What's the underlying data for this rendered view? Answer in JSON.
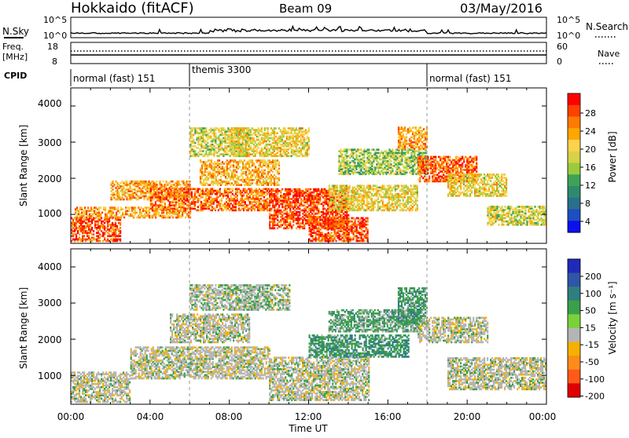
{
  "header": {
    "station": "Hokkaido (fitACF)",
    "beam": "Beam 09",
    "date": "03/May/2016"
  },
  "noise_panel": {
    "left_label": "N.Sky",
    "right_label": "N.Search",
    "left_ticks": [
      "10^5",
      "10^0"
    ],
    "right_ticks": [
      "10^5",
      "10^0"
    ]
  },
  "freq_panel": {
    "left_label_1": "Freq.",
    "left_label_2": "[MHz]",
    "left_ticks": [
      "18",
      "8"
    ],
    "right_label": "Nave",
    "right_ticks": [
      "60",
      "0"
    ]
  },
  "cpid": {
    "label": "CPID",
    "segments": [
      {
        "name": "normal (fast) 151",
        "start_hour": 0,
        "end_hour": 6
      },
      {
        "name": "themis 3300",
        "start_hour": 6,
        "end_hour": 18
      },
      {
        "name": "normal (fast) 151",
        "start_hour": 18,
        "end_hour": 24
      }
    ]
  },
  "power_panel": {
    "ylabel": "Slant Range [km]",
    "yticks": [
      "4000",
      "3000",
      "2000",
      "1000"
    ],
    "colorbar_label": "Power [dB]",
    "colorbar_ticks": [
      "28",
      "24",
      "20",
      "16",
      "12",
      "8",
      "4"
    ],
    "colors": [
      "#ff0000",
      "#ff4000",
      "#ff7a00",
      "#ffa600",
      "#ffd24d",
      "#d6d24a",
      "#9acb3e",
      "#3fa257",
      "#2e8a6e",
      "#2a6f8c",
      "#1d4fc0",
      "#0a10f0"
    ]
  },
  "velocity_panel": {
    "ylabel": "Slant Range [km]",
    "yticks": [
      "4000",
      "3000",
      "2000",
      "1000"
    ],
    "colorbar_label": "Velocity [m s⁻¹]",
    "colorbar_ticks": [
      "200",
      "100",
      "50",
      "15",
      "-15",
      "-50",
      "-100",
      "-200"
    ],
    "colors": [
      "#1f2bb8",
      "#2f56a8",
      "#2f7f7f",
      "#3aa04a",
      "#7bd13a",
      "#b5b5b5",
      "#f5b100",
      "#ff8c1a",
      "#ff5a1a",
      "#e00000"
    ]
  },
  "xaxis": {
    "label": "Time UT",
    "ticks": [
      "00:00",
      "04:00",
      "08:00",
      "12:00",
      "16:00",
      "20:00",
      "00:00"
    ]
  },
  "chart_data": {
    "type": "heatmap",
    "title": "Hokkaido (fitACF) Beam 09 03/May/2016",
    "xlabel": "Time UT",
    "ylabel": "Slant Range [km]",
    "xlim_hours": [
      0,
      24
    ],
    "ylim_km": [
      200,
      4500
    ],
    "power_range_db": [
      0,
      30
    ],
    "velocity_range_ms": [
      -250,
      250
    ],
    "power_regions": [
      {
        "t0": 0.0,
        "t1": 2.5,
        "r0": 250,
        "r1": 900,
        "p": 27
      },
      {
        "t0": 0.2,
        "t1": 6.0,
        "r0": 900,
        "r1": 1200,
        "p": 22
      },
      {
        "t0": 2.0,
        "t1": 6.0,
        "r0": 1400,
        "r1": 1900,
        "p": 22
      },
      {
        "t0": 4.0,
        "t1": 10.0,
        "r0": 1100,
        "r1": 1700,
        "p": 25
      },
      {
        "t0": 6.5,
        "t1": 10.5,
        "r0": 1800,
        "r1": 2500,
        "p": 21
      },
      {
        "t0": 6.0,
        "t1": 9.0,
        "r0": 2600,
        "r1": 3400,
        "p": 16
      },
      {
        "t0": 8.0,
        "t1": 12.0,
        "r0": 2600,
        "r1": 3400,
        "p": 18
      },
      {
        "t0": 10.0,
        "t1": 14.0,
        "r0": 600,
        "r1": 1700,
        "p": 28
      },
      {
        "t0": 12.0,
        "t1": 15.0,
        "r0": 250,
        "r1": 900,
        "p": 27
      },
      {
        "t0": 13.0,
        "t1": 17.5,
        "r0": 1100,
        "r1": 1800,
        "p": 18
      },
      {
        "t0": 13.5,
        "t1": 18.0,
        "r0": 2100,
        "r1": 2800,
        "p": 14
      },
      {
        "t0": 16.5,
        "t1": 18.0,
        "r0": 2800,
        "r1": 3400,
        "p": 22
      },
      {
        "t0": 17.5,
        "t1": 20.5,
        "r0": 1900,
        "r1": 2600,
        "p": 26
      },
      {
        "t0": 19.0,
        "t1": 22.0,
        "r0": 1500,
        "r1": 2100,
        "p": 18
      },
      {
        "t0": 21.0,
        "t1": 24.0,
        "r0": 700,
        "r1": 1200,
        "p": 16
      }
    ],
    "velocity_regions": [
      {
        "t0": 0.0,
        "t1": 3.0,
        "r0": 250,
        "r1": 1100,
        "v": 0
      },
      {
        "t0": 3.0,
        "t1": 10.0,
        "r0": 900,
        "r1": 1800,
        "v": 0
      },
      {
        "t0": 5.0,
        "t1": 9.0,
        "r0": 1900,
        "r1": 2700,
        "v": 0
      },
      {
        "t0": 6.0,
        "t1": 11.0,
        "r0": 2800,
        "r1": 3500,
        "v": 5
      },
      {
        "t0": 10.0,
        "t1": 15.0,
        "r0": 300,
        "r1": 1500,
        "v": 0
      },
      {
        "t0": 12.0,
        "t1": 17.0,
        "r0": 1500,
        "r1": 2100,
        "v": 35
      },
      {
        "t0": 13.0,
        "t1": 17.5,
        "r0": 2200,
        "r1": 2800,
        "v": 25
      },
      {
        "t0": 16.5,
        "t1": 18.0,
        "r0": 2400,
        "r1": 3400,
        "v": 30
      },
      {
        "t0": 17.5,
        "t1": 21.0,
        "r0": 1900,
        "r1": 2600,
        "v": 0
      },
      {
        "t0": 19.0,
        "t1": 24.0,
        "r0": 600,
        "r1": 1500,
        "v": 0
      }
    ]
  }
}
